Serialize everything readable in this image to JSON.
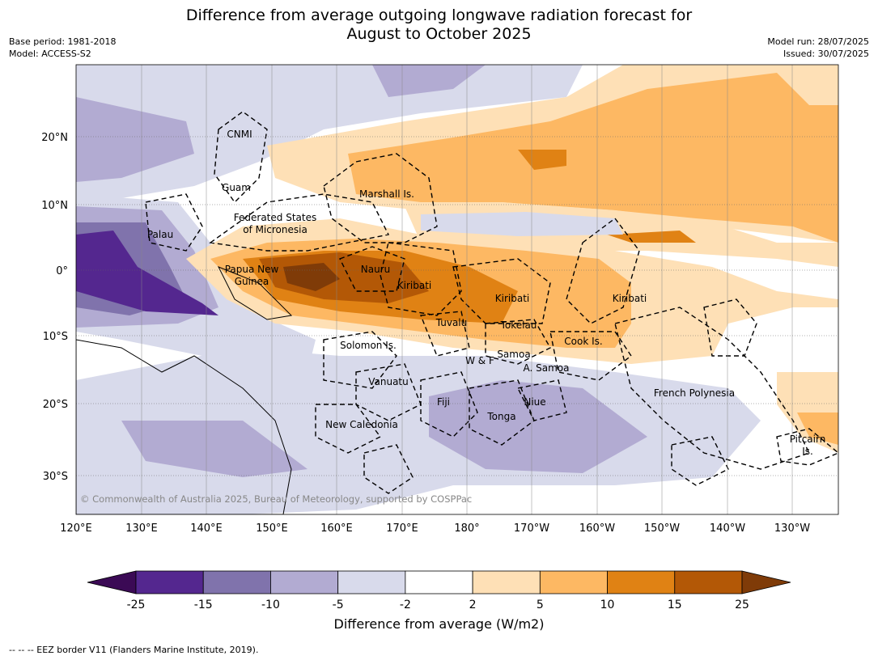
{
  "header": {
    "title_line1": "Difference from average outgoing longwave radiation forecast for",
    "title_line2": "August to October 2025",
    "base_period": "Base period: 1981-2018",
    "model": "Model: ACCESS-S2",
    "model_run": "Model run: 28/07/2025",
    "issued": "Issued: 30/07/2025"
  },
  "map": {
    "lon_ticks": [
      "120°E",
      "130°E",
      "140°E",
      "150°E",
      "160°E",
      "170°E",
      "180°",
      "170°W",
      "160°W",
      "150°W",
      "140°W",
      "130°W"
    ],
    "lat_ticks": [
      "20°N",
      "10°N",
      "0°",
      "10°S",
      "20°S",
      "30°S"
    ],
    "copyright": "© Commonwealth of Australia 2025, Bureau of Meteorology, supported by COSPPac",
    "region_labels": [
      {
        "name": "CNMI",
        "text": "CNMI"
      },
      {
        "name": "Guam",
        "text": "Guam"
      },
      {
        "name": "Marshall",
        "text": "Marshall Is."
      },
      {
        "name": "FSM1",
        "text": "Federated States"
      },
      {
        "name": "FSM2",
        "text": "of Micronesia"
      },
      {
        "name": "Palau",
        "text": "Palau"
      },
      {
        "name": "PNG1",
        "text": "Papua New"
      },
      {
        "name": "PNG2",
        "text": "Guinea"
      },
      {
        "name": "Nauru",
        "text": "Nauru"
      },
      {
        "name": "KiribatiW",
        "text": "Kiribati"
      },
      {
        "name": "KiribatiC",
        "text": "Kiribati"
      },
      {
        "name": "KiribatiE",
        "text": "Kiribati"
      },
      {
        "name": "Tuvalu",
        "text": "Tuvalu"
      },
      {
        "name": "Tokelau",
        "text": "Tokelau"
      },
      {
        "name": "Cook",
        "text": "Cook Is."
      },
      {
        "name": "Solomon",
        "text": "Solomon Is."
      },
      {
        "name": "WF",
        "text": "W & F"
      },
      {
        "name": "Samoa",
        "text": "Samoa"
      },
      {
        "name": "ASamoa",
        "text": "A. Samoa"
      },
      {
        "name": "Vanuatu",
        "text": "Vanuatu"
      },
      {
        "name": "Fiji",
        "text": "Fiji"
      },
      {
        "name": "Niue",
        "text": "Niue"
      },
      {
        "name": "Tonga",
        "text": "Tonga"
      },
      {
        "name": "NewCal",
        "text": "New Caledonia"
      },
      {
        "name": "FrPoly",
        "text": "French Polynesia"
      },
      {
        "name": "Pitcairn1",
        "text": "Pitcairn"
      },
      {
        "name": "Pitcairn2",
        "text": "Is."
      }
    ]
  },
  "colorbar": {
    "ticks": [
      "-25",
      "-15",
      "-10",
      "-5",
      "-2",
      "2",
      "5",
      "10",
      "15",
      "25"
    ],
    "colors": [
      "#3b0a55",
      "#54278f",
      "#8073ac",
      "#b2abd2",
      "#d8daeb",
      "#ffffff",
      "#fee0b6",
      "#fdb863",
      "#e08214",
      "#b35806",
      "#7f3b08"
    ],
    "label": "Difference from average (W/m2)"
  },
  "footer": {
    "eez_note": "--  --  -- EEZ border V11 (Flanders Marine Institute, 2019)."
  }
}
